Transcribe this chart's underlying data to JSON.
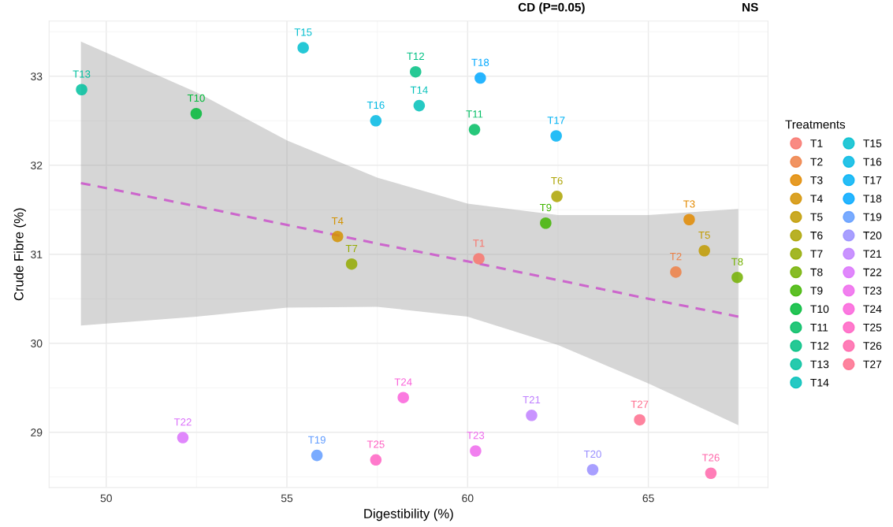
{
  "chart_data": {
    "type": "scatter",
    "xlabel": "Digestibility (%)",
    "ylabel": "Crude Fibre (%)",
    "legend_title": "Treatments",
    "xlim": [
      48.42,
      68.31
    ],
    "xticks": [
      50,
      55,
      60,
      65
    ],
    "ylim": [
      28.38,
      33.62
    ],
    "yticks": [
      29,
      30,
      31,
      32,
      33
    ],
    "grid": true,
    "legend": "right",
    "marker": "circle",
    "annotations": [
      "CD (P=0.05)",
      "NS"
    ],
    "series": [
      {
        "name": "T1",
        "color": "#f8766d",
        "x": [
          60.31
        ],
        "values": [
          30.95
        ]
      },
      {
        "name": "T2",
        "color": "#ee8045",
        "x": [
          65.76
        ],
        "values": [
          30.8
        ]
      },
      {
        "name": "T3",
        "color": "#e28900",
        "x": [
          66.13
        ],
        "values": [
          31.39
        ]
      },
      {
        "name": "T4",
        "color": "#d39200",
        "x": [
          56.4
        ],
        "values": [
          31.2
        ]
      },
      {
        "name": "T5",
        "color": "#c19b00",
        "x": [
          66.55
        ],
        "values": [
          31.04
        ]
      },
      {
        "name": "T6",
        "color": "#aca300",
        "x": [
          62.47
        ],
        "values": [
          31.65
        ]
      },
      {
        "name": "T7",
        "color": "#93aa00",
        "x": [
          56.79
        ],
        "values": [
          30.89
        ]
      },
      {
        "name": "T8",
        "color": "#73b000",
        "x": [
          67.46
        ],
        "values": [
          30.74
        ]
      },
      {
        "name": "T9",
        "color": "#41b500",
        "x": [
          62.16
        ],
        "values": [
          31.35
        ]
      },
      {
        "name": "T10",
        "color": "#00ba38",
        "x": [
          52.49
        ],
        "values": [
          32.58
        ]
      },
      {
        "name": "T11",
        "color": "#00bd63",
        "x": [
          60.19
        ],
        "values": [
          32.4
        ]
      },
      {
        "name": "T12",
        "color": "#00c083",
        "x": [
          58.56
        ],
        "values": [
          33.05
        ]
      },
      {
        "name": "T13",
        "color": "#00c19f",
        "x": [
          49.32
        ],
        "values": [
          32.85
        ]
      },
      {
        "name": "T14",
        "color": "#00c0b9",
        "x": [
          58.66
        ],
        "values": [
          32.67
        ]
      },
      {
        "name": "T15",
        "color": "#00becf",
        "x": [
          55.45
        ],
        "values": [
          33.32
        ]
      },
      {
        "name": "T16",
        "color": "#00b9e3",
        "x": [
          57.46
        ],
        "values": [
          32.5
        ]
      },
      {
        "name": "T17",
        "color": "#00b2f4",
        "x": [
          62.45
        ],
        "values": [
          32.33
        ]
      },
      {
        "name": "T18",
        "color": "#00a8ff",
        "x": [
          60.35
        ],
        "values": [
          32.98
        ]
      },
      {
        "name": "T19",
        "color": "#619cff",
        "x": [
          55.83
        ],
        "values": [
          28.74
        ]
      },
      {
        "name": "T20",
        "color": "#998eff",
        "x": [
          63.46
        ],
        "values": [
          28.58
        ]
      },
      {
        "name": "T21",
        "color": "#bf80ff",
        "x": [
          61.77
        ],
        "values": [
          29.19
        ]
      },
      {
        "name": "T22",
        "color": "#db72fb",
        "x": [
          52.12
        ],
        "values": [
          28.94
        ]
      },
      {
        "name": "T23",
        "color": "#ee68ec",
        "x": [
          60.22
        ],
        "values": [
          28.79
        ]
      },
      {
        "name": "T24",
        "color": "#fa62da",
        "x": [
          58.22
        ],
        "values": [
          29.39
        ]
      },
      {
        "name": "T25",
        "color": "#ff61c3",
        "x": [
          57.46
        ],
        "values": [
          28.69
        ]
      },
      {
        "name": "T26",
        "color": "#ff66aa",
        "x": [
          66.73
        ],
        "values": [
          28.54
        ]
      },
      {
        "name": "T27",
        "color": "#fe6d8d",
        "x": [
          64.76
        ],
        "values": [
          29.14
        ]
      },
      {
        "type": "line",
        "color": "#cc66cc",
        "line_style": "dashed",
        "marker": "none",
        "x": [
          49.3,
          52.5,
          55,
          57.5,
          60,
          62.5,
          65,
          67.49
        ],
        "values": [
          31.8,
          31.54,
          31.33,
          31.12,
          30.92,
          30.71,
          30.5,
          30.3
        ],
        "lower": [
          30.2,
          30.3,
          30.4,
          30.41,
          30.3,
          29.98,
          29.55,
          29.08
        ],
        "upper": [
          33.39,
          32.82,
          32.28,
          31.86,
          31.57,
          31.44,
          31.44,
          31.51
        ]
      }
    ]
  }
}
